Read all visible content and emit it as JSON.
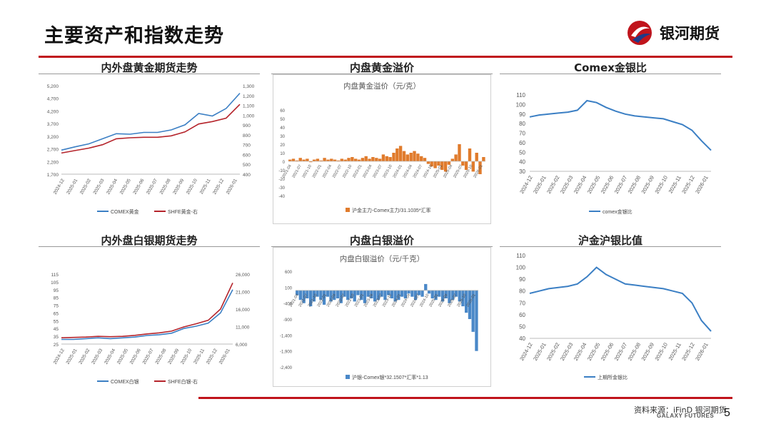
{
  "slide": {
    "title": "主要资产和指数走势",
    "logo_text": "银河期货",
    "source": "资料来源：iFinD 银河期货",
    "footer_brand": "GALAXY FUTURES",
    "page_number": "5",
    "brand_color": "#c0141c"
  },
  "chart_data": [
    {
      "id": "gold",
      "type": "line",
      "title": "内外盘黄金期货走势",
      "x_ticks": [
        "2024-12",
        "2025-01",
        "2025-02",
        "2025-03",
        "2025-04",
        "2025-05",
        "2025-06",
        "2025-07",
        "2025-08",
        "2025-09",
        "2025-10",
        "2025-11",
        "2025-12",
        "2026-01"
      ],
      "y_left_ticks": [
        "5,200",
        "4,700",
        "4,200",
        "3,700",
        "3,200",
        "2,700",
        "2,200",
        "1,700"
      ],
      "y_right_ticks": [
        "1,300",
        "1,200",
        "1,100",
        "1,000",
        "900",
        "800",
        "700",
        "600",
        "500",
        "400"
      ],
      "ylim_left": [
        1700,
        5200
      ],
      "ylim_right": [
        400,
        1300
      ],
      "legend_position": "bottom",
      "series": [
        {
          "name": "COMEX黄金",
          "axis": "left",
          "color": "#3b7fc4",
          "values": [
            2650,
            2780,
            2900,
            3100,
            3300,
            3280,
            3350,
            3350,
            3450,
            3650,
            4100,
            4000,
            4300,
            4900
          ]
        },
        {
          "name": "SHFE黄金-右",
          "axis": "right",
          "color": "#b5242b",
          "values": [
            615,
            640,
            665,
            700,
            760,
            770,
            775,
            775,
            790,
            830,
            910,
            935,
            970,
            1110
          ]
        }
      ]
    },
    {
      "id": "gold-premium",
      "type": "bar",
      "title": "内盘黄金溢价",
      "inner_title": "内盘黄金溢价（元/克）",
      "x_ticks": [
        "2021-04",
        "2021-07",
        "2021-10",
        "2022-01",
        "2022-04",
        "2022-07",
        "2022-10",
        "2023-01",
        "2023-04",
        "2023-07",
        "2023-10",
        "2024-01",
        "2024-04",
        "2024-07",
        "2024-10",
        "2025-01",
        "2025-04",
        "2025-07",
        "2025-10",
        "2026-01"
      ],
      "y_ticks": [
        "60",
        "50",
        "40",
        "30",
        "20",
        "10",
        "0",
        "-10",
        "-20",
        "-30",
        "-40"
      ],
      "ylim": [
        -40,
        60
      ],
      "legend": "沪金主力-Comex主力/31.1035*汇率",
      "color": "#e07b2c",
      "values": [
        2,
        3,
        1,
        4,
        2,
        3,
        -1,
        2,
        3,
        1,
        4,
        2,
        3,
        2,
        1,
        3,
        2,
        4,
        5,
        3,
        2,
        4,
        6,
        3,
        5,
        4,
        3,
        8,
        6,
        5,
        10,
        15,
        18,
        12,
        8,
        10,
        12,
        9,
        6,
        4,
        -3,
        -6,
        -8,
        -5,
        -10,
        -12,
        -4,
        3,
        8,
        20,
        -5,
        -10,
        15,
        -12,
        10,
        -15,
        5
      ]
    },
    {
      "id": "comex-gs-ratio",
      "type": "line",
      "title": "Comex金银比",
      "x_ticks": [
        "2024-12",
        "2025-01",
        "2025-02",
        "2025-03",
        "2025-04",
        "2025-05",
        "2025-06",
        "2025-07",
        "2025-08",
        "2025-09",
        "2025-10",
        "2025-11",
        "2025-12",
        "2026-01"
      ],
      "y_ticks": [
        "110",
        "100",
        "90",
        "80",
        "70",
        "60",
        "50",
        "40",
        "30"
      ],
      "ylim": [
        30,
        110
      ],
      "legend": "comex金银比",
      "color": "#3b7fc4",
      "values": [
        87,
        89,
        90,
        91,
        92,
        94,
        104,
        102,
        97,
        93,
        90,
        88,
        87,
        86,
        85,
        82,
        79,
        73,
        62,
        52
      ]
    },
    {
      "id": "silver",
      "type": "line",
      "title": "内外盘白银期货走势",
      "x_ticks": [
        "2024-12",
        "2025-01",
        "2025-02",
        "2025-03",
        "2025-04",
        "2025-05",
        "2025-06",
        "2025-07",
        "2025-08",
        "2025-09",
        "2025-10",
        "2025-11",
        "2025-12",
        "2026-01"
      ],
      "y_left_ticks": [
        "115",
        "105",
        "95",
        "85",
        "75",
        "65",
        "55",
        "45",
        "35",
        "25"
      ],
      "y_right_ticks": [
        "26,000",
        "21,000",
        "16,000",
        "11,000",
        "6,000"
      ],
      "ylim_left": [
        25,
        115
      ],
      "ylim_right": [
        6000,
        26000
      ],
      "legend_position": "bottom",
      "series": [
        {
          "name": "COMEX白银",
          "axis": "left",
          "color": "#3b7fc4",
          "values": [
            31,
            31,
            32,
            33,
            32,
            33,
            34,
            36,
            37,
            39,
            45,
            48,
            52,
            65,
            95
          ]
        },
        {
          "name": "SHFE白银-右",
          "axis": "right",
          "color": "#b5242b",
          "values": [
            7800,
            7900,
            8000,
            8200,
            8100,
            8200,
            8500,
            8900,
            9200,
            9700,
            10900,
            11800,
            12800,
            16000,
            23500
          ]
        }
      ]
    },
    {
      "id": "silver-premium",
      "type": "bar",
      "title": "内盘白银溢价",
      "inner_title": "内盘白银溢价（元/千克）",
      "x_ticks": [
        "2021-04",
        "2021-07",
        "2021-10",
        "2022-01",
        "2022-04",
        "2022-07",
        "2022-10",
        "2023-01",
        "2023-04",
        "2023-07",
        "2023-10",
        "2024-01",
        "2024-04",
        "2024-07",
        "2024-10",
        "2025-01",
        "2025-04",
        "2025-07",
        "2025-10",
        "2026-01"
      ],
      "y_ticks": [
        "600",
        "100",
        "-400",
        "-900",
        "-1,400",
        "-1,900",
        "-2,400"
      ],
      "ylim": [
        -2400,
        600
      ],
      "legend": "沪银-Comex银*32.1507*汇率*1.13",
      "color": "#4a88c8",
      "values": [
        -150,
        -300,
        -400,
        -250,
        -500,
        -350,
        -200,
        -300,
        -450,
        -200,
        -350,
        -300,
        -250,
        -400,
        -200,
        -300,
        -250,
        -350,
        -150,
        -300,
        -400,
        -200,
        -250,
        -350,
        -300,
        -200,
        -300,
        -150,
        -250,
        -350,
        -300,
        -200,
        -250,
        -100,
        -200,
        -300,
        -150,
        -200,
        200,
        -100,
        -250,
        -300,
        -200,
        -350,
        -250,
        -400,
        -300,
        -200,
        -350,
        -500,
        -700,
        -900,
        -1300,
        -1900
      ]
    },
    {
      "id": "sh-gs-ratio",
      "type": "line",
      "title": "沪金沪银比值",
      "x_ticks": [
        "2024-12",
        "2025-01",
        "2025-02",
        "2025-03",
        "2025-04",
        "2025-05",
        "2025-06",
        "2025-07",
        "2025-08",
        "2025-09",
        "2025-10",
        "2025-11",
        "2025-12",
        "2026-01"
      ],
      "y_ticks": [
        "110",
        "100",
        "90",
        "80",
        "70",
        "60",
        "50",
        "40"
      ],
      "ylim": [
        40,
        110
      ],
      "legend": "上期所金银比",
      "color": "#3b7fc4",
      "values": [
        78,
        80,
        82,
        83,
        84,
        86,
        92,
        100,
        94,
        90,
        86,
        85,
        84,
        83,
        82,
        80,
        78,
        70,
        55,
        46
      ]
    }
  ]
}
